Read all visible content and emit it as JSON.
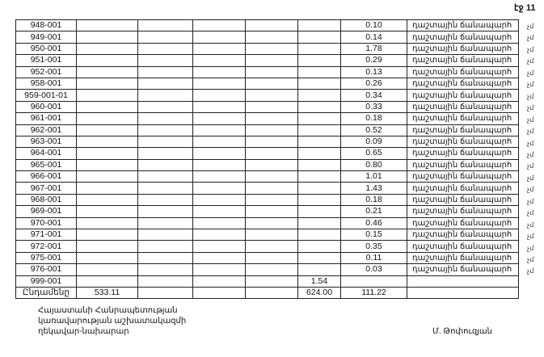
{
  "page_label": "էջ 11",
  "rows": [
    {
      "id": "948-001",
      "c6": "",
      "c7": "0.10",
      "desc": "դաշտային ճանապարհ",
      "mark": "չմ"
    },
    {
      "id": "949-001",
      "c6": "",
      "c7": "0.14",
      "desc": "դաշտային ճանապարհ",
      "mark": "չմ"
    },
    {
      "id": "950-001",
      "c6": "",
      "c7": "1.78",
      "desc": "դաշտային ճանապարհ",
      "mark": "չմ"
    },
    {
      "id": "951-001",
      "c6": "",
      "c7": "0.29",
      "desc": "դաշտային ճանապարհ",
      "mark": "չմ"
    },
    {
      "id": "952-001",
      "c6": "",
      "c7": "0.13",
      "desc": "դաշտային ճանապարհ",
      "mark": "չմ"
    },
    {
      "id": "958-001",
      "c6": "",
      "c7": "0.26",
      "desc": "դաշտային ճանապարհ",
      "mark": "չմ"
    },
    {
      "id": "959-001-01",
      "c6": "",
      "c7": "0.34",
      "desc": "դաշտային ճանապարհ",
      "mark": "չմ"
    },
    {
      "id": "960-001",
      "c6": "",
      "c7": "0.33",
      "desc": "դաշտային ճանապարհ",
      "mark": "չմ"
    },
    {
      "id": "961-001",
      "c6": "",
      "c7": "0.18",
      "desc": "դաշտային ճանապարհ",
      "mark": "չմ"
    },
    {
      "id": "962-001",
      "c6": "",
      "c7": "0.52",
      "desc": "դաշտային ճանապարհ",
      "mark": "չմ"
    },
    {
      "id": "963-001",
      "c6": "",
      "c7": "0.09",
      "desc": "դաշտային ճանապարհ",
      "mark": "չմ"
    },
    {
      "id": "964-001",
      "c6": "",
      "c7": "0.65",
      "desc": "դաշտային ճանապարհ",
      "mark": "չմ"
    },
    {
      "id": "965-001",
      "c6": "",
      "c7": "0.80",
      "desc": "դաշտային ճանապարհ",
      "mark": "չմ"
    },
    {
      "id": "966-001",
      "c6": "",
      "c7": "1.01",
      "desc": "դաշտային ճանապարհ",
      "mark": "չմ"
    },
    {
      "id": "967-001",
      "c6": "",
      "c7": "1.43",
      "desc": "դաշտային ճանապարհ",
      "mark": "չմ"
    },
    {
      "id": "968-001",
      "c6": "",
      "c7": "0.18",
      "desc": "դաշտային ճանապարհ",
      "mark": "չմ"
    },
    {
      "id": "969-001",
      "c6": "",
      "c7": "0.21",
      "desc": "դաշտային ճանապարհ",
      "mark": "չմ"
    },
    {
      "id": "970-001",
      "c6": "",
      "c7": "0.46",
      "desc": "դաշտային ճանապարհ",
      "mark": "չմ"
    },
    {
      "id": "971-001",
      "c6": "",
      "c7": "0.15",
      "desc": "դաշտային ճանապարհ",
      "mark": "չմ"
    },
    {
      "id": "972-001",
      "c6": "",
      "c7": "0.35",
      "desc": "դաշտային ճանապարհ",
      "mark": "չմ"
    },
    {
      "id": "975-001",
      "c6": "",
      "c7": "0.11",
      "desc": "դաշտային ճանապարհ",
      "mark": "չմ"
    },
    {
      "id": "976-001",
      "c6": "",
      "c7": "0.03",
      "desc": "դաշտային ճանապարհ",
      "mark": "չմ"
    },
    {
      "id": "999-001",
      "c6": "1.54",
      "c7": "",
      "desc": "",
      "mark": ""
    }
  ],
  "total": {
    "label": "Ընդամենը",
    "c1": "533.11",
    "c6": "624.00",
    "c7": "111.22"
  },
  "footer": {
    "line1": "Հայաստանի Հանրապետության",
    "line2": "կառավարության աշխատակազմի",
    "line3": "ղեկավար-նախարար",
    "signature": "Մ. Թոփուզյան"
  }
}
